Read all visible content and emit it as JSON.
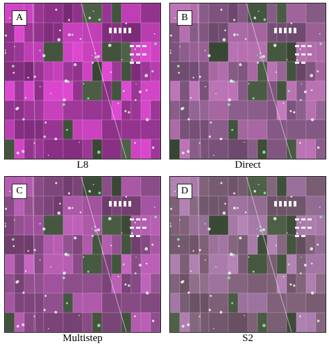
{
  "panels": [
    {
      "letter": "A",
      "caption": "L8",
      "tint": "#b23aa8",
      "bg": "#a0389a"
    },
    {
      "letter": "B",
      "caption": "Direct",
      "tint": "#9a5f95",
      "bg": "#8d5f8d"
    },
    {
      "letter": "C",
      "caption": "Multistep",
      "tint": "#9a4f96",
      "bg": "#8f4f8c"
    },
    {
      "letter": "D",
      "caption": "S2",
      "tint": "#8f6990",
      "bg": "#86677f"
    }
  ]
}
